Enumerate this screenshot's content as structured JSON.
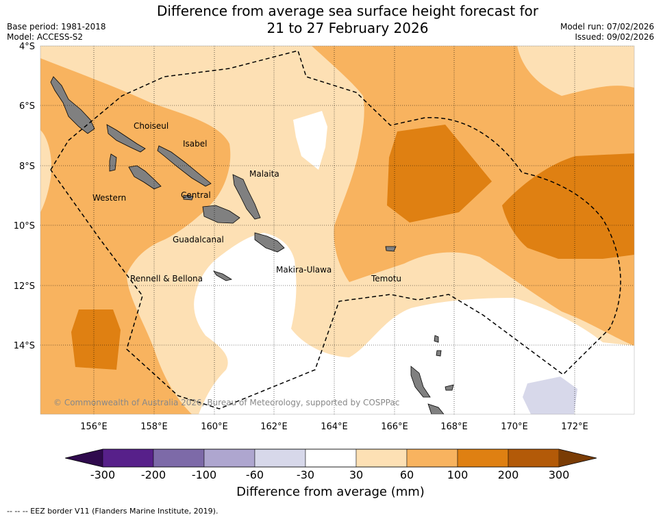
{
  "title_line1": "Difference from average sea surface height forecast for",
  "title_line2": "21 to 27 February 2026",
  "base_period": "Base period: 1981-2018",
  "model": "Model: ACCESS-S2",
  "model_run": "Model run: 07/02/2026",
  "issued": "Issued: 09/02/2026",
  "lat_labels": [
    "4°S",
    "6°S",
    "8°S",
    "10°S",
    "12°S",
    "14°S"
  ],
  "lon_labels": [
    "156°E",
    "158°E",
    "160°E",
    "162°E",
    "164°E",
    "166°E",
    "168°E",
    "170°E",
    "172°E"
  ],
  "places": [
    "Choiseul",
    "Isabel",
    "Malaita",
    "Western",
    "Central",
    "Guadalcanal",
    "Makira-Ulawa",
    "Rennell & Bellona",
    "Temotu"
  ],
  "copyright": "© Commonwealth of Australia 2026, Bureau of Meteorology, supported by COSPPac",
  "colorbar": {
    "ticks": [
      "-300",
      "-200",
      "-100",
      "-60",
      "-30",
      "30",
      "60",
      "100",
      "200",
      "300"
    ],
    "colors": [
      "#57208a",
      "#7d6aa8",
      "#aea6cf",
      "#d7d8ea",
      "#ffffff",
      "#fde0b4",
      "#f8b35f",
      "#df8012",
      "#b35a08"
    ],
    "under_color": "#2f0a4d",
    "over_color": "#7a3c05",
    "label": "Difference from average (mm)"
  },
  "eez_note": "-- -- -- EEZ border V11 (Flanders Marine Institute, 2019)."
}
